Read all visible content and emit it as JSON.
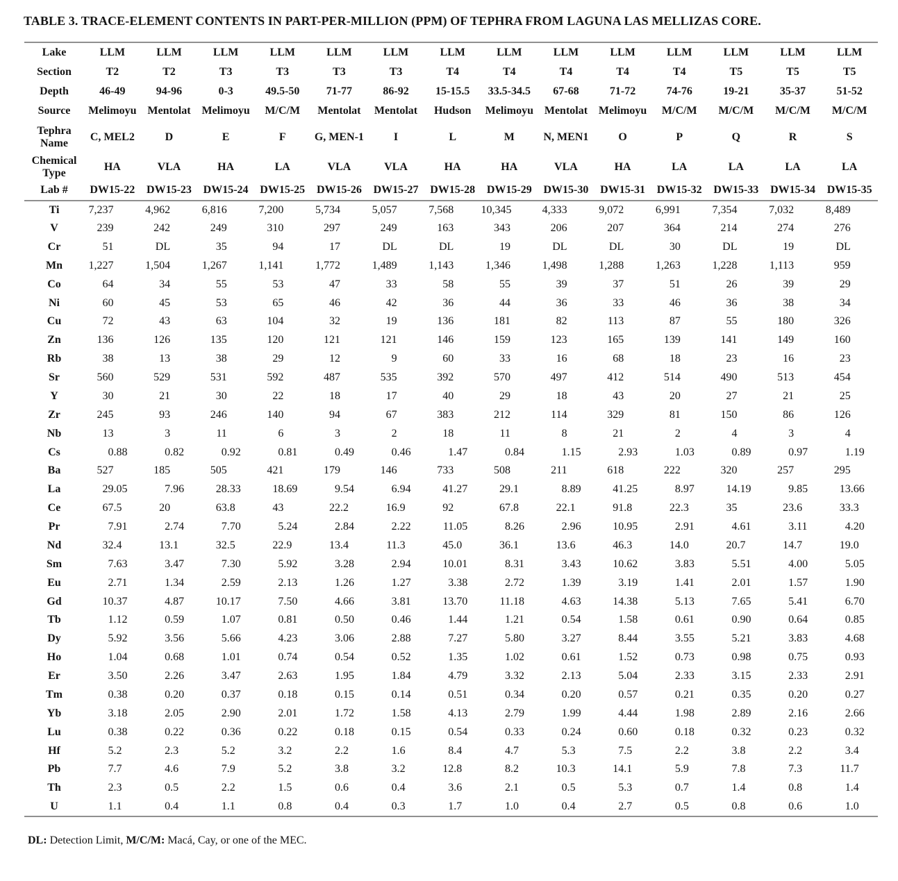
{
  "title": "TABLE 3. TRACE-ELEMENT CONTENTS IN PART-PER-MILLION (PPM) OF TEPHRA FROM LAGUNA LAS MELLIZAS CORE.",
  "table": {
    "header_rows": [
      {
        "key": "lake",
        "label": "Lake",
        "values": [
          "LLM",
          "LLM",
          "LLM",
          "LLM",
          "LLM",
          "LLM",
          "LLM",
          "LLM",
          "LLM",
          "LLM",
          "LLM",
          "LLM",
          "LLM",
          "LLM"
        ]
      },
      {
        "key": "section",
        "label": "Section",
        "values": [
          "T2",
          "T2",
          "T3",
          "T3",
          "T3",
          "T3",
          "T4",
          "T4",
          "T4",
          "T4",
          "T4",
          "T5",
          "T5",
          "T5"
        ]
      },
      {
        "key": "depth",
        "label": "Depth",
        "values": [
          "46-49",
          "94-96",
          "0-3",
          "49.5-50",
          "71-77",
          "86-92",
          "15-15.5",
          "33.5-34.5",
          "67-68",
          "71-72",
          "74-76",
          "19-21",
          "35-37",
          "51-52"
        ]
      },
      {
        "key": "source",
        "label": "Source",
        "values": [
          "Melimoyu",
          "Mentolat",
          "Melimoyu",
          "M/C/M",
          "Mentolat",
          "Mentolat",
          "Hudson",
          "Melimoyu",
          "Mentolat",
          "Melimoyu",
          "M/C/M",
          "M/C/M",
          "M/C/M",
          "M/C/M"
        ]
      },
      {
        "key": "tephra-name",
        "label": "Tephra\nName",
        "values": [
          "C, MEL2",
          "D",
          "E",
          "F",
          "G, MEN-1",
          "I",
          "L",
          "M",
          "N, MEN1",
          "O",
          "P",
          "Q",
          "R",
          "S"
        ]
      },
      {
        "key": "chemical-type",
        "label": "Chemical\nType",
        "values": [
          "HA",
          "VLA",
          "HA",
          "LA",
          "VLA",
          "VLA",
          "HA",
          "HA",
          "VLA",
          "HA",
          "LA",
          "LA",
          "LA",
          "LA"
        ]
      },
      {
        "key": "lab",
        "label": "Lab #",
        "values": [
          "DW15-22",
          "DW15-23",
          "DW15-24",
          "DW15-25",
          "DW15-26",
          "DW15-27",
          "DW15-28",
          "DW15-29",
          "DW15-30",
          "DW15-31",
          "DW15-32",
          "DW15-33",
          "DW15-34",
          "DW15-35"
        ]
      }
    ],
    "rows": [
      {
        "element": "Ti",
        "values": [
          "7,237",
          "4,962",
          "6,816",
          "7,200",
          "5,734",
          "5,057",
          "7,568",
          "10,345",
          "4,333",
          "9,072",
          "6,991",
          "7,354",
          "7,032",
          "8,489"
        ]
      },
      {
        "element": "V",
        "values": [
          "239",
          "242",
          "249",
          "310",
          "297",
          "249",
          "163",
          "343",
          "206",
          "207",
          "364",
          "214",
          "274",
          "276"
        ]
      },
      {
        "element": "Cr",
        "values": [
          "51",
          "DL",
          "35",
          "94",
          "17",
          "DL",
          "DL",
          "19",
          "DL",
          "DL",
          "30",
          "DL",
          "19",
          "DL"
        ]
      },
      {
        "element": "Mn",
        "values": [
          "1,227",
          "1,504",
          "1,267",
          "1,141",
          "1,772",
          "1,489",
          "1,143",
          "1,346",
          "1,498",
          "1,288",
          "1,263",
          "1,228",
          "1,113",
          "959"
        ]
      },
      {
        "element": "Co",
        "values": [
          "64",
          "34",
          "55",
          "53",
          "47",
          "33",
          "58",
          "55",
          "39",
          "37",
          "51",
          "26",
          "39",
          "29"
        ]
      },
      {
        "element": "Ni",
        "values": [
          "60",
          "45",
          "53",
          "65",
          "46",
          "42",
          "36",
          "44",
          "36",
          "33",
          "46",
          "36",
          "38",
          "34"
        ]
      },
      {
        "element": "Cu",
        "values": [
          "72",
          "43",
          "63",
          "104",
          "32",
          "19",
          "136",
          "181",
          "82",
          "113",
          "87",
          "55",
          "180",
          "326"
        ]
      },
      {
        "element": "Zn",
        "values": [
          "136",
          "126",
          "135",
          "120",
          "121",
          "121",
          "146",
          "159",
          "123",
          "165",
          "139",
          "141",
          "149",
          "160"
        ]
      },
      {
        "element": "Rb",
        "values": [
          "38",
          "13",
          "38",
          "29",
          "12",
          "9",
          "60",
          "33",
          "16",
          "68",
          "18",
          "23",
          "16",
          "23"
        ]
      },
      {
        "element": "Sr",
        "values": [
          "560",
          "529",
          "531",
          "592",
          "487",
          "535",
          "392",
          "570",
          "497",
          "412",
          "514",
          "490",
          "513",
          "454"
        ]
      },
      {
        "element": "Y",
        "values": [
          "30",
          "21",
          "30",
          "22",
          "18",
          "17",
          "40",
          "29",
          "18",
          "43",
          "20",
          "27",
          "21",
          "25"
        ]
      },
      {
        "element": "Zr",
        "values": [
          "245",
          "93",
          "246",
          "140",
          "94",
          "67",
          "383",
          "212",
          "114",
          "329",
          "81",
          "150",
          "86",
          "126"
        ]
      },
      {
        "element": "Nb",
        "values": [
          "13",
          "3",
          "11",
          "6",
          "3",
          "2",
          "18",
          "11",
          "8",
          "21",
          "2",
          "4",
          "3",
          "4"
        ]
      },
      {
        "element": "Cs",
        "values": [
          "0.88",
          "0.82",
          "0.92",
          "0.81",
          "0.49",
          "0.46",
          "1.47",
          "0.84",
          "1.15",
          "2.93",
          "1.03",
          "0.89",
          "0.97",
          "1.19"
        ]
      },
      {
        "element": "Ba",
        "values": [
          "527",
          "185",
          "505",
          "421",
          "179",
          "146",
          "733",
          "508",
          "211",
          "618",
          "222",
          "320",
          "257",
          "295"
        ]
      },
      {
        "element": "La",
        "values": [
          "29.05",
          "7.96",
          "28.33",
          "18.69",
          "9.54",
          "6.94",
          "41.27",
          "29.1",
          "8.89",
          "41.25",
          "8.97",
          "14.19",
          "9.85",
          "13.66"
        ]
      },
      {
        "element": "Ce",
        "values": [
          "67.5",
          "20",
          "63.8",
          "43",
          "22.2",
          "16.9",
          "92",
          "67.8",
          "22.1",
          "91.8",
          "22.3",
          "35",
          "23.6",
          "33.3"
        ]
      },
      {
        "element": "Pr",
        "values": [
          "7.91",
          "2.74",
          "7.70",
          "5.24",
          "2.84",
          "2.22",
          "11.05",
          "8.26",
          "2.96",
          "10.95",
          "2.91",
          "4.61",
          "3.11",
          "4.20"
        ]
      },
      {
        "element": "Nd",
        "values": [
          "32.4",
          "13.1",
          "32.5",
          "22.9",
          "13.4",
          "11.3",
          "45.0",
          "36.1",
          "13.6",
          "46.3",
          "14.0",
          "20.7",
          "14.7",
          "19.0"
        ]
      },
      {
        "element": "Sm",
        "values": [
          "7.63",
          "3.47",
          "7.30",
          "5.92",
          "3.28",
          "2.94",
          "10.01",
          "8.31",
          "3.43",
          "10.62",
          "3.83",
          "5.51",
          "4.00",
          "5.05"
        ]
      },
      {
        "element": "Eu",
        "values": [
          "2.71",
          "1.34",
          "2.59",
          "2.13",
          "1.26",
          "1.27",
          "3.38",
          "2.72",
          "1.39",
          "3.19",
          "1.41",
          "2.01",
          "1.57",
          "1.90"
        ]
      },
      {
        "element": "Gd",
        "values": [
          "10.37",
          "4.87",
          "10.17",
          "7.50",
          "4.66",
          "3.81",
          "13.70",
          "11.18",
          "4.63",
          "14.38",
          "5.13",
          "7.65",
          "5.41",
          "6.70"
        ]
      },
      {
        "element": "Tb",
        "values": [
          "1.12",
          "0.59",
          "1.07",
          "0.81",
          "0.50",
          "0.46",
          "1.44",
          "1.21",
          "0.54",
          "1.58",
          "0.61",
          "0.90",
          "0.64",
          "0.85"
        ]
      },
      {
        "element": "Dy",
        "values": [
          "5.92",
          "3.56",
          "5.66",
          "4.23",
          "3.06",
          "2.88",
          "7.27",
          "5.80",
          "3.27",
          "8.44",
          "3.55",
          "5.21",
          "3.83",
          "4.68"
        ]
      },
      {
        "element": "Ho",
        "values": [
          "1.04",
          "0.68",
          "1.01",
          "0.74",
          "0.54",
          "0.52",
          "1.35",
          "1.02",
          "0.61",
          "1.52",
          "0.73",
          "0.98",
          "0.75",
          "0.93"
        ]
      },
      {
        "element": "Er",
        "values": [
          "3.50",
          "2.26",
          "3.47",
          "2.63",
          "1.95",
          "1.84",
          "4.79",
          "3.32",
          "2.13",
          "5.04",
          "2.33",
          "3.15",
          "2.33",
          "2.91"
        ]
      },
      {
        "element": "Tm",
        "values": [
          "0.38",
          "0.20",
          "0.37",
          "0.18",
          "0.15",
          "0.14",
          "0.51",
          "0.34",
          "0.20",
          "0.57",
          "0.21",
          "0.35",
          "0.20",
          "0.27"
        ]
      },
      {
        "element": "Yb",
        "values": [
          "3.18",
          "2.05",
          "2.90",
          "2.01",
          "1.72",
          "1.58",
          "4.13",
          "2.79",
          "1.99",
          "4.44",
          "1.98",
          "2.89",
          "2.16",
          "2.66"
        ]
      },
      {
        "element": "Lu",
        "values": [
          "0.38",
          "0.22",
          "0.36",
          "0.22",
          "0.18",
          "0.15",
          "0.54",
          "0.33",
          "0.24",
          "0.60",
          "0.18",
          "0.32",
          "0.23",
          "0.32"
        ]
      },
      {
        "element": "Hf",
        "values": [
          "5.2",
          "2.3",
          "5.2",
          "3.2",
          "2.2",
          "1.6",
          "8.4",
          "4.7",
          "5.3",
          "7.5",
          "2.2",
          "3.8",
          "2.2",
          "3.4"
        ]
      },
      {
        "element": "Pb",
        "values": [
          "7.7",
          "4.6",
          "7.9",
          "5.2",
          "3.8",
          "3.2",
          "12.8",
          "8.2",
          "10.3",
          "14.1",
          "5.9",
          "7.8",
          "7.3",
          "11.7"
        ]
      },
      {
        "element": "Th",
        "values": [
          "2.3",
          "0.5",
          "2.2",
          "1.5",
          "0.6",
          "0.4",
          "3.6",
          "2.1",
          "0.5",
          "5.3",
          "0.7",
          "1.4",
          "0.8",
          "1.4"
        ]
      },
      {
        "element": "U",
        "values": [
          "1.1",
          "0.4",
          "1.1",
          "0.8",
          "0.4",
          "0.3",
          "1.7",
          "1.0",
          "0.4",
          "2.7",
          "0.5",
          "0.8",
          "0.6",
          "1.0"
        ]
      }
    ]
  },
  "footnote": {
    "dl_label": "DL:",
    "dl_text": " Detection Limit, ",
    "mcm_label": "M/C/M:",
    "mcm_text": " Macá, Cay, or one of the MEC."
  }
}
